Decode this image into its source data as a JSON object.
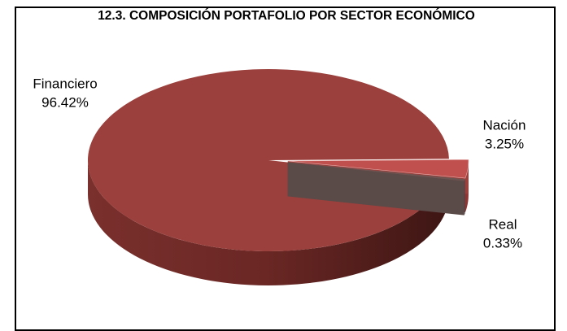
{
  "chart_data": {
    "type": "pie",
    "title": "12.3. COMPOSICIÓN PORTAFOLIO POR SECTOR ECONÓMICO",
    "categories": [
      "Financiero",
      "Nación",
      "Real"
    ],
    "values": [
      96.42,
      3.25,
      0.33
    ],
    "value_labels": [
      "96.42%",
      "3.25%",
      "0.33%"
    ],
    "colors": [
      "#9b403c",
      "#c0504d",
      "#6b5552"
    ]
  }
}
